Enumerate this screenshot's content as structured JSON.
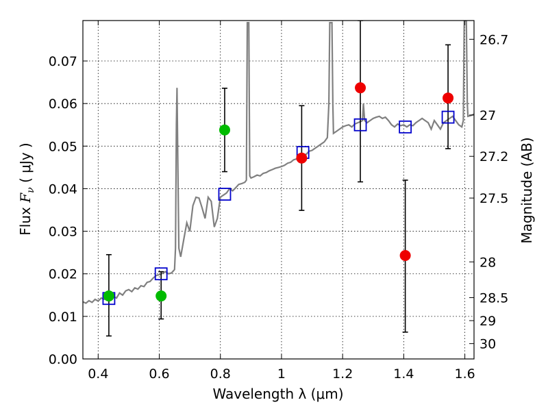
{
  "chart_data": {
    "type": "scatter",
    "xlabel": "Wavelength  λ (μm)",
    "ylabel_prefix": "Flux ",
    "ylabel_symbol": "F",
    "ylabel_subscript": "ν",
    "ylabel_suffix": " ( μJy )",
    "y2label": "Magnitude (AB)",
    "xlim": [
      0.35,
      1.63
    ],
    "ylim": [
      0.0,
      0.0795
    ],
    "x_ticks": [
      {
        "value": 0.4,
        "label": "0.4"
      },
      {
        "value": 0.6,
        "label": "0.6"
      },
      {
        "value": 0.8,
        "label": "0.8"
      },
      {
        "value": 1.0,
        "label": "1"
      },
      {
        "value": 1.2,
        "label": "1.2"
      },
      {
        "value": 1.4,
        "label": "1.4"
      },
      {
        "value": 1.6,
        "label": "1.6"
      }
    ],
    "y_ticks": [
      {
        "value": 0.0,
        "label": "0.00"
      },
      {
        "value": 0.01,
        "label": "0.01"
      },
      {
        "value": 0.02,
        "label": "0.02"
      },
      {
        "value": 0.03,
        "label": "0.03"
      },
      {
        "value": 0.04,
        "label": "0.04"
      },
      {
        "value": 0.05,
        "label": "0.05"
      },
      {
        "value": 0.06,
        "label": "0.06"
      },
      {
        "value": 0.07,
        "label": "0.07"
      }
    ],
    "y2_ticks": [
      {
        "flux": 0.0751,
        "label": "26.7"
      },
      {
        "flux": 0.0573,
        "label": "27"
      },
      {
        "flux": 0.0476,
        "label": "27.2"
      },
      {
        "flux": 0.0378,
        "label": "27.5"
      },
      {
        "flux": 0.0228,
        "label": "28"
      },
      {
        "flux": 0.0144,
        "label": "28.5"
      },
      {
        "flux": 0.009,
        "label": "29"
      },
      {
        "flux": 0.0036,
        "label": "30"
      }
    ],
    "grid": true,
    "sed_model": {
      "color": "#808080",
      "points": [
        [
          0.35,
          0.0134
        ],
        [
          0.36,
          0.0131
        ],
        [
          0.37,
          0.0137
        ],
        [
          0.38,
          0.0133
        ],
        [
          0.39,
          0.014
        ],
        [
          0.4,
          0.0136
        ],
        [
          0.41,
          0.0143
        ],
        [
          0.42,
          0.014
        ],
        [
          0.43,
          0.0145
        ],
        [
          0.44,
          0.0143
        ],
        [
          0.45,
          0.0147
        ],
        [
          0.46,
          0.0143
        ],
        [
          0.47,
          0.0155
        ],
        [
          0.48,
          0.015
        ],
        [
          0.49,
          0.016
        ],
        [
          0.5,
          0.0163
        ],
        [
          0.51,
          0.0158
        ],
        [
          0.52,
          0.0167
        ],
        [
          0.53,
          0.0164
        ],
        [
          0.54,
          0.0172
        ],
        [
          0.55,
          0.017
        ],
        [
          0.56,
          0.018
        ],
        [
          0.57,
          0.0182
        ],
        [
          0.58,
          0.019
        ],
        [
          0.59,
          0.0196
        ],
        [
          0.6,
          0.0198
        ],
        [
          0.61,
          0.0201
        ],
        [
          0.62,
          0.0205
        ],
        [
          0.63,
          0.02
        ],
        [
          0.64,
          0.0202
        ],
        [
          0.65,
          0.021
        ],
        [
          0.653,
          0.026
        ],
        [
          0.656,
          0.055
        ],
        [
          0.658,
          0.0637
        ],
        [
          0.661,
          0.045
        ],
        [
          0.664,
          0.026
        ],
        [
          0.67,
          0.024
        ],
        [
          0.68,
          0.028
        ],
        [
          0.69,
          0.032
        ],
        [
          0.7,
          0.03
        ],
        [
          0.71,
          0.036
        ],
        [
          0.72,
          0.038
        ],
        [
          0.73,
          0.0378
        ],
        [
          0.74,
          0.0355
        ],
        [
          0.75,
          0.033
        ],
        [
          0.76,
          0.038
        ],
        [
          0.77,
          0.037
        ],
        [
          0.78,
          0.031
        ],
        [
          0.79,
          0.033
        ],
        [
          0.8,
          0.038
        ],
        [
          0.81,
          0.0385
        ],
        [
          0.82,
          0.039
        ],
        [
          0.83,
          0.04
        ],
        [
          0.84,
          0.0395
        ],
        [
          0.85,
          0.0402
        ],
        [
          0.86,
          0.041
        ],
        [
          0.87,
          0.0412
        ],
        [
          0.88,
          0.0415
        ],
        [
          0.885,
          0.042
        ],
        [
          0.888,
          0.079
        ],
        [
          0.893,
          0.079
        ],
        [
          0.896,
          0.043
        ],
        [
          0.9,
          0.0425
        ],
        [
          0.91,
          0.0428
        ],
        [
          0.92,
          0.0432
        ],
        [
          0.93,
          0.043
        ],
        [
          0.94,
          0.0436
        ],
        [
          0.95,
          0.0438
        ],
        [
          0.96,
          0.0442
        ],
        [
          0.97,
          0.0445
        ],
        [
          0.98,
          0.0448
        ],
        [
          0.99,
          0.045
        ],
        [
          1.0,
          0.0452
        ],
        [
          1.01,
          0.0455
        ],
        [
          1.02,
          0.046
        ],
        [
          1.03,
          0.0462
        ],
        [
          1.04,
          0.0468
        ],
        [
          1.05,
          0.047
        ],
        [
          1.06,
          0.0478
        ],
        [
          1.07,
          0.0482
        ],
        [
          1.08,
          0.048
        ],
        [
          1.09,
          0.0488
        ],
        [
          1.1,
          0.049
        ],
        [
          1.11,
          0.0495
        ],
        [
          1.12,
          0.05
        ],
        [
          1.13,
          0.0505
        ],
        [
          1.14,
          0.051
        ],
        [
          1.15,
          0.052
        ],
        [
          1.155,
          0.06
        ],
        [
          1.158,
          0.079
        ],
        [
          1.165,
          0.079
        ],
        [
          1.168,
          0.06
        ],
        [
          1.17,
          0.053
        ],
        [
          1.18,
          0.0535
        ],
        [
          1.19,
          0.054
        ],
        [
          1.2,
          0.0545
        ],
        [
          1.21,
          0.0548
        ],
        [
          1.22,
          0.055
        ],
        [
          1.23,
          0.0545
        ],
        [
          1.24,
          0.0552
        ],
        [
          1.25,
          0.0555
        ],
        [
          1.26,
          0.0558
        ],
        [
          1.265,
          0.056
        ],
        [
          1.268,
          0.06
        ],
        [
          1.272,
          0.056
        ],
        [
          1.28,
          0.0555
        ],
        [
          1.29,
          0.056
        ],
        [
          1.3,
          0.0565
        ],
        [
          1.31,
          0.0568
        ],
        [
          1.32,
          0.057
        ],
        [
          1.33,
          0.0565
        ],
        [
          1.34,
          0.0568
        ],
        [
          1.35,
          0.056
        ],
        [
          1.36,
          0.055
        ],
        [
          1.37,
          0.0545
        ],
        [
          1.38,
          0.0552
        ],
        [
          1.39,
          0.0548
        ],
        [
          1.4,
          0.055
        ],
        [
          1.41,
          0.0545
        ],
        [
          1.42,
          0.055
        ],
        [
          1.43,
          0.0548
        ],
        [
          1.44,
          0.0555
        ],
        [
          1.45,
          0.056
        ],
        [
          1.46,
          0.0565
        ],
        [
          1.47,
          0.056
        ],
        [
          1.48,
          0.0555
        ],
        [
          1.49,
          0.054
        ],
        [
          1.5,
          0.056
        ],
        [
          1.51,
          0.055
        ],
        [
          1.52,
          0.054
        ],
        [
          1.53,
          0.0555
        ],
        [
          1.54,
          0.056
        ],
        [
          1.55,
          0.0565
        ],
        [
          1.56,
          0.057
        ],
        [
          1.57,
          0.056
        ],
        [
          1.58,
          0.055
        ],
        [
          1.59,
          0.0545
        ],
        [
          1.595,
          0.056
        ],
        [
          1.598,
          0.0795
        ],
        [
          1.605,
          0.0795
        ],
        [
          1.608,
          0.06
        ],
        [
          1.61,
          0.057
        ],
        [
          1.62,
          0.0572
        ],
        [
          1.63,
          0.0575
        ]
      ]
    },
    "model_photometry": {
      "marker": "open-square",
      "color": "#0000cc",
      "points": [
        {
          "x": 0.435,
          "y": 0.0142
        },
        {
          "x": 0.606,
          "y": 0.02
        },
        {
          "x": 0.814,
          "y": 0.0387
        },
        {
          "x": 1.07,
          "y": 0.0485
        },
        {
          "x": 1.258,
          "y": 0.055
        },
        {
          "x": 1.405,
          "y": 0.0545
        },
        {
          "x": 1.545,
          "y": 0.0568
        }
      ]
    },
    "observed_photometry": {
      "marker": "filled-circle",
      "points": [
        {
          "x": 0.435,
          "y": 0.0148,
          "err_low": 0.0054,
          "err_high": 0.0245,
          "color": "#00bb00"
        },
        {
          "x": 0.606,
          "y": 0.0148,
          "err_low": 0.0094,
          "err_high": 0.0205,
          "color": "#00bb00"
        },
        {
          "x": 0.814,
          "y": 0.0538,
          "err_low": 0.044,
          "err_high": 0.0636,
          "color": "#00bb00"
        },
        {
          "x": 1.066,
          "y": 0.0472,
          "err_low": 0.0349,
          "err_high": 0.0595,
          "color": "#ee0000"
        },
        {
          "x": 1.258,
          "y": 0.0637,
          "err_low": 0.0416,
          "err_high": 0.0795,
          "color": "#ee0000"
        },
        {
          "x": 1.405,
          "y": 0.0243,
          "err_low": 0.0063,
          "err_high": 0.042,
          "color": "#ee0000"
        },
        {
          "x": 1.545,
          "y": 0.0613,
          "err_low": 0.0494,
          "err_high": 0.0738,
          "color": "#ee0000"
        }
      ]
    }
  }
}
